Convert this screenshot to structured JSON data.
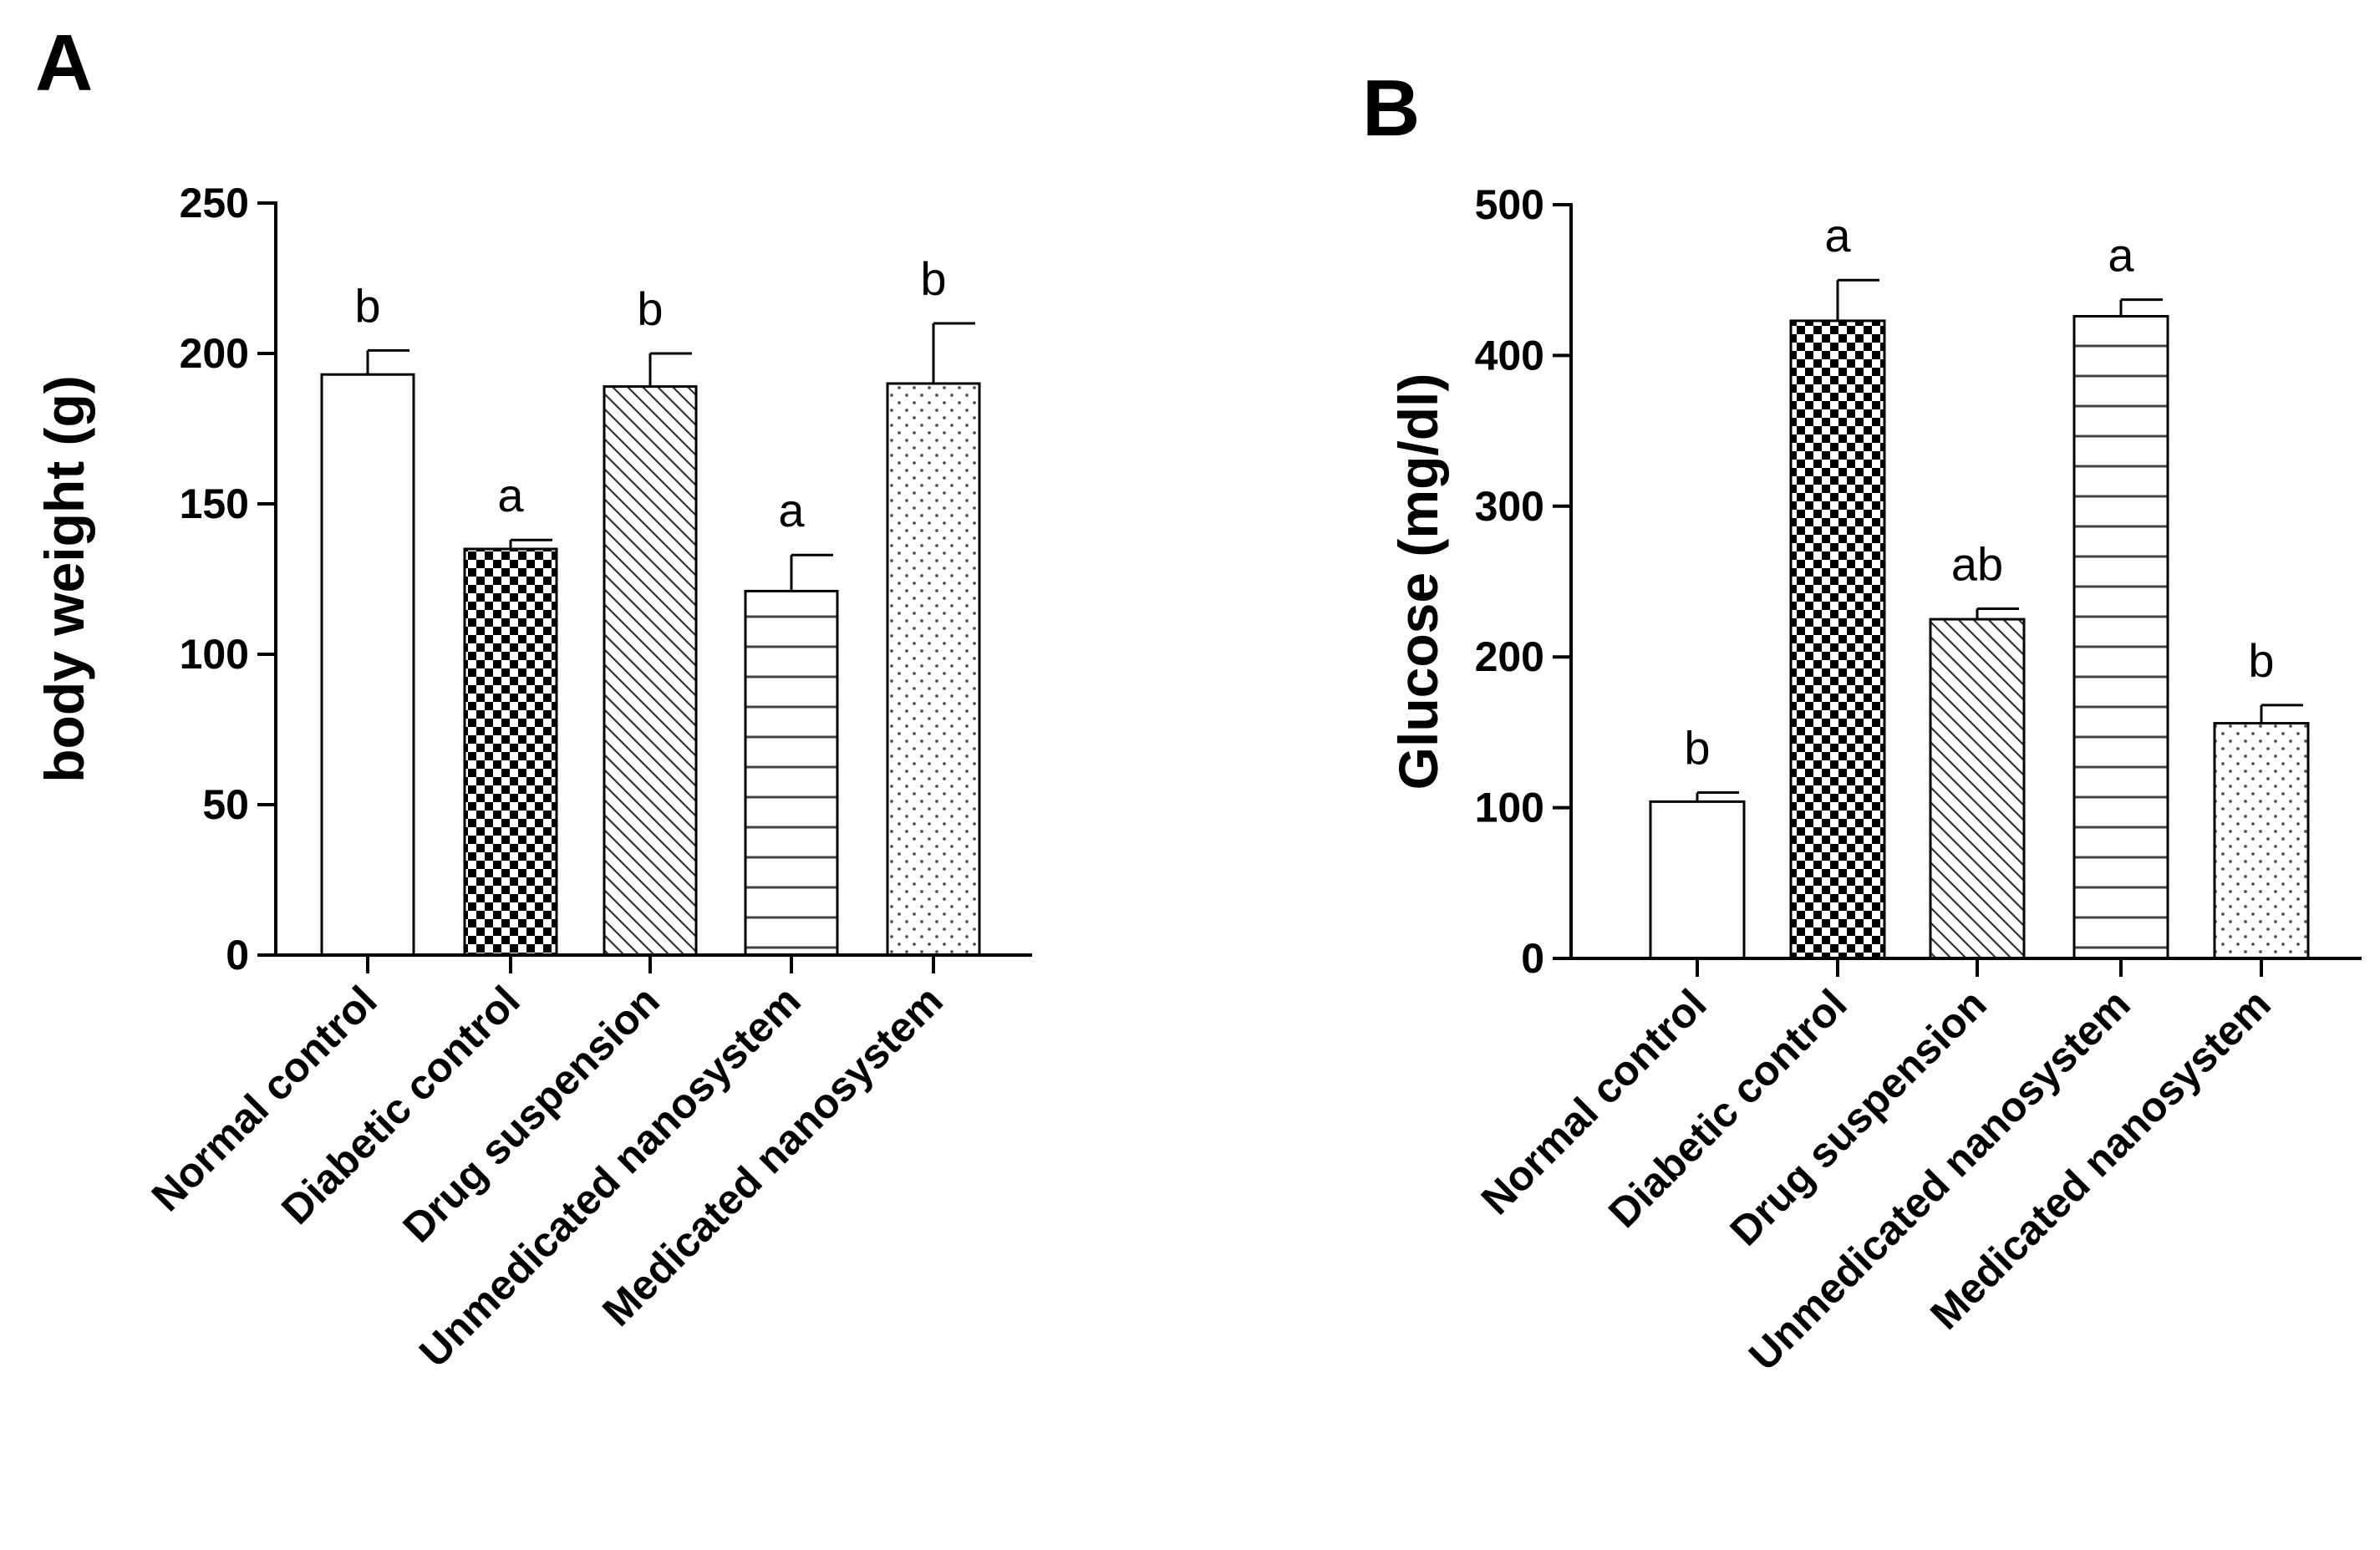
{
  "chart_data": [
    {
      "panel": "A",
      "type": "bar",
      "title": "",
      "xlabel": "",
      "ylabel": "body weight (g)",
      "ylim": [
        0,
        250
      ],
      "yticks": [
        0,
        50,
        100,
        150,
        200,
        250
      ],
      "categories": [
        "Normal control",
        "Diabetic control",
        "Drug suspension",
        "Unmedicated nanosystem",
        "Medicated nanosystem"
      ],
      "values": [
        193,
        135,
        189,
        121,
        190
      ],
      "errors": [
        8,
        3,
        11,
        12,
        20
      ],
      "significance": [
        "b",
        "a",
        "b",
        "a",
        "b"
      ],
      "patterns": [
        "none",
        "checker",
        "diagonal",
        "horizontal",
        "dots"
      ],
      "grid": false,
      "legend": "none"
    },
    {
      "panel": "B",
      "type": "bar",
      "title": "",
      "xlabel": "",
      "ylabel": "Glucose (mg/dl)",
      "ylim": [
        0,
        500
      ],
      "yticks": [
        0,
        100,
        200,
        300,
        400,
        500
      ],
      "categories": [
        "Normal control",
        "Diabetic control",
        "Drug suspension",
        "Unmedicated nanosystem",
        "Medicated nanosystem"
      ],
      "values": [
        104,
        423,
        225,
        426,
        156
      ],
      "errors": [
        6,
        27,
        7,
        11,
        12
      ],
      "significance": [
        "b",
        "a",
        "ab",
        "a",
        "b"
      ],
      "patterns": [
        "none",
        "checker",
        "diagonal",
        "horizontal",
        "dots"
      ],
      "grid": false,
      "legend": "none"
    }
  ]
}
